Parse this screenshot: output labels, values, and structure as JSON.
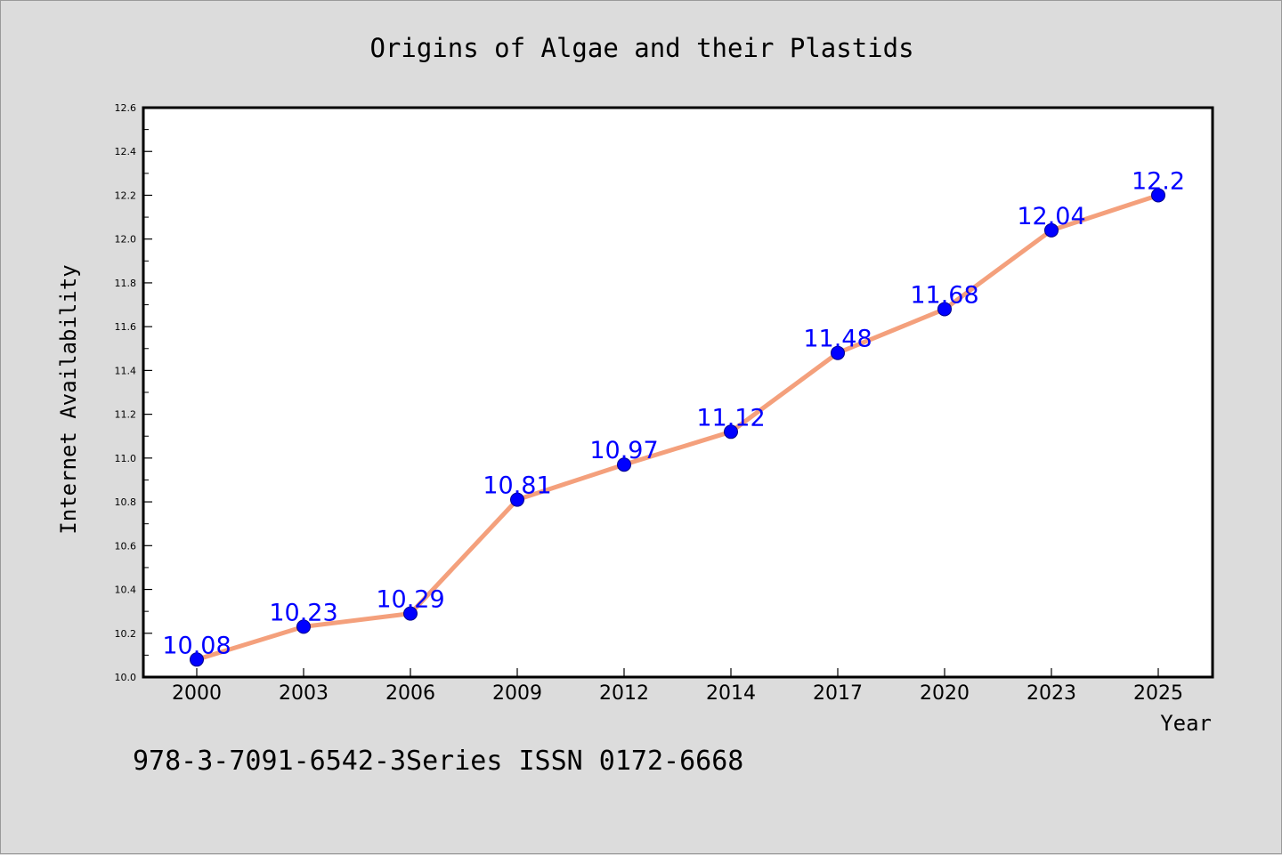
{
  "chart_data": {
    "type": "line",
    "title": "Origins of Algae and their Plastids",
    "xlabel": "Year",
    "ylabel": "Internet Availability",
    "categories": [
      "2000",
      "2003",
      "2006",
      "2009",
      "2012",
      "2014",
      "2017",
      "2020",
      "2023",
      "2025"
    ],
    "series": [
      {
        "values": [
          10.08,
          10.23,
          10.29,
          10.81,
          10.97,
          11.12,
          11.48,
          11.68,
          12.04,
          12.2
        ],
        "labels": [
          "10.08",
          "10.23",
          "10.29",
          "10.81",
          "10.97",
          "11.12",
          "11.48",
          "11.68",
          "12.04",
          "12.2"
        ],
        "line_color": "#f4a07c",
        "marker_color": "#0000ff"
      }
    ],
    "yticks": [
      "10.0",
      "10.2",
      "10.4",
      "10.6",
      "10.8",
      "11.0",
      "11.2",
      "11.4",
      "11.6",
      "11.8",
      "12.0",
      "12.2",
      "12.4",
      "12.6"
    ],
    "ylim": [
      10.0,
      12.6
    ],
    "grid": false,
    "label_color": "#0000ff"
  },
  "footer_text": "978-3-7091-6542-3Series ISSN 0172-6668"
}
